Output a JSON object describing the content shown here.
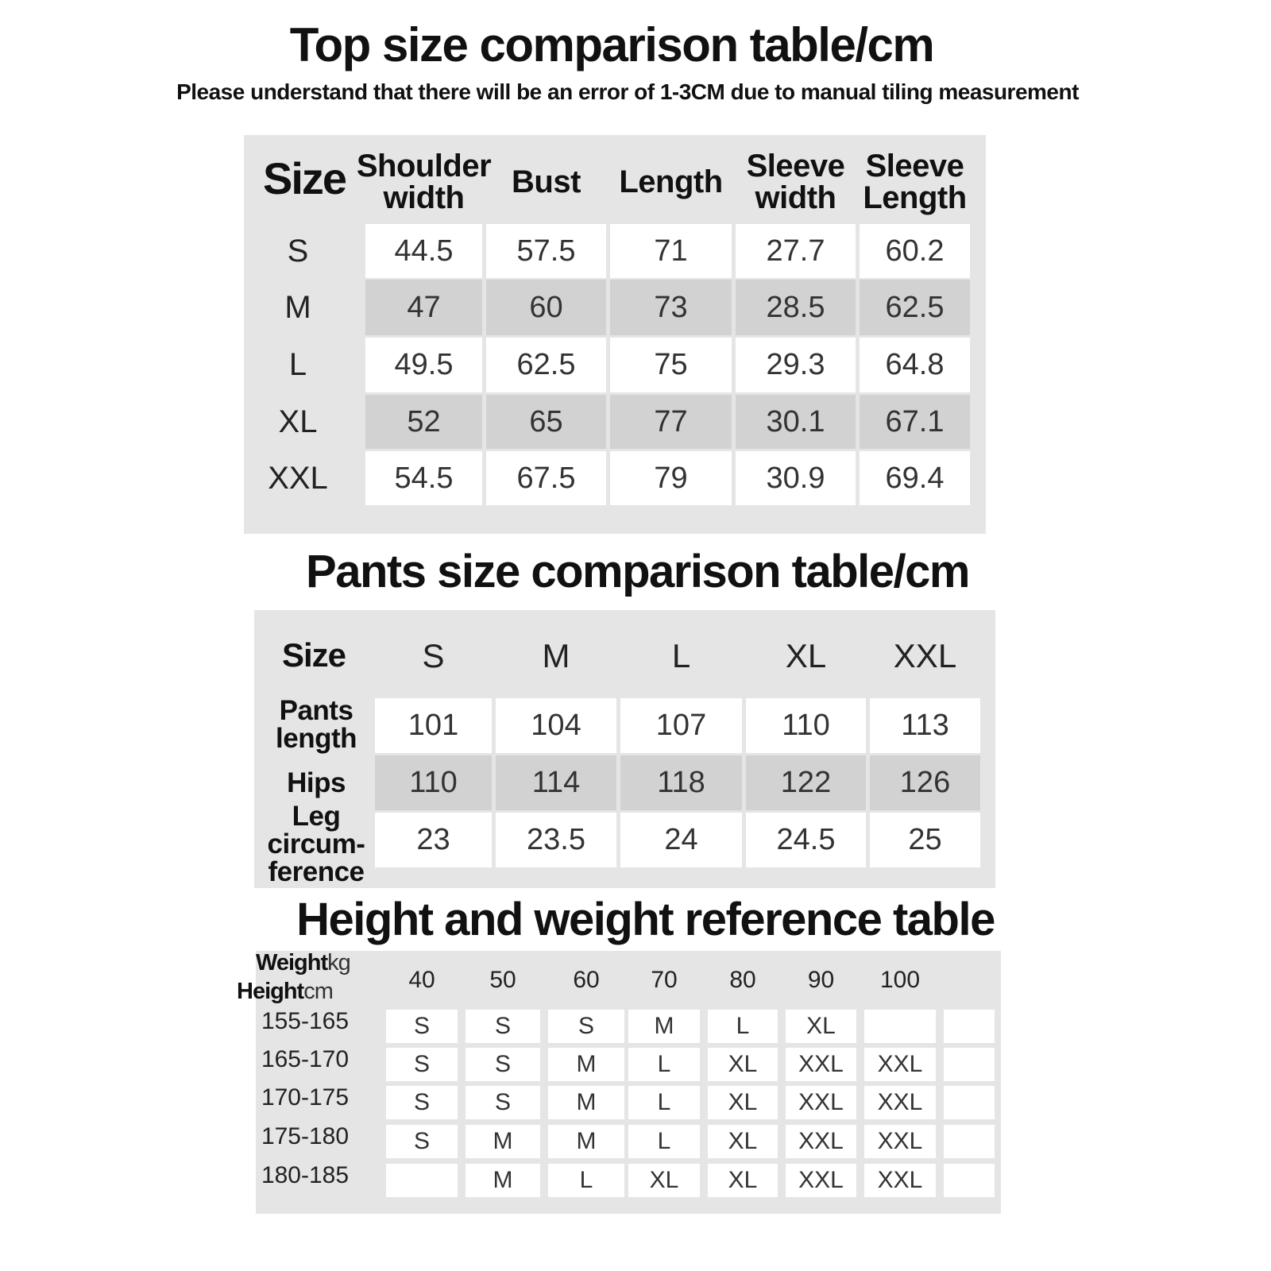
{
  "top": {
    "title": "Top size comparison table/cm",
    "subtitle": "Please understand that there will be an error of 1-3CM due to manual tiling measurement",
    "headers": [
      "Size",
      "Shoulder width",
      "Bust",
      "Length",
      "Sleeve width",
      "Sleeve Length"
    ],
    "rows": [
      [
        "S",
        "44.5",
        "57.5",
        "71",
        "27.7",
        "60.2"
      ],
      [
        "M",
        "47",
        "60",
        "73",
        "28.5",
        "62.5"
      ],
      [
        "L",
        "49.5",
        "62.5",
        "75",
        "29.3",
        "64.8"
      ],
      [
        "XL",
        "52",
        "65",
        "77",
        "30.1",
        "67.1"
      ],
      [
        "XXL",
        "54.5",
        "67.5",
        "79",
        "30.9",
        "69.4"
      ]
    ]
  },
  "pants": {
    "title": "Pants size comparison table/cm",
    "headers": [
      "Size",
      "S",
      "M",
      "L",
      "XL",
      "XXL"
    ],
    "rows": [
      [
        "Pants length",
        "101",
        "104",
        "107",
        "110",
        "113"
      ],
      [
        "Hips",
        "110",
        "114",
        "118",
        "122",
        "126"
      ],
      [
        "Leg circum-ference",
        "23",
        "23.5",
        "24",
        "24.5",
        "25"
      ]
    ]
  },
  "height_weight": {
    "title": "Height and weight reference table",
    "corner": {
      "weight": "Weight",
      "weight_unit": "kg",
      "height": "Height",
      "height_unit": "cm"
    },
    "headers": [
      "40",
      "50",
      "60",
      "70",
      "80",
      "90",
      "100"
    ],
    "rows": [
      [
        "155-165",
        "S",
        "S",
        "S",
        "M",
        "L",
        "XL",
        null
      ],
      [
        "165-170",
        "S",
        "S",
        "M",
        "L",
        "XL",
        "XXL",
        "XXL"
      ],
      [
        "170-175",
        "S",
        "S",
        "M",
        "L",
        "XL",
        "XXL",
        "XXL"
      ],
      [
        "175-180",
        "S",
        "M",
        "M",
        "L",
        "XL",
        "XXL",
        "XXL"
      ],
      [
        "180-185",
        null,
        "M",
        "L",
        "XL",
        "XL",
        "XXL",
        "XXL"
      ]
    ]
  }
}
